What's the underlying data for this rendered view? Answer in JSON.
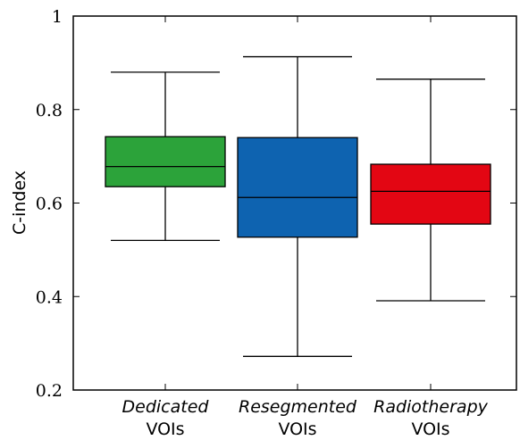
{
  "chart_data": {
    "type": "box",
    "ylabel": "C-index",
    "ylim": [
      0.2,
      1.0
    ],
    "yticks": [
      {
        "value": 0.2,
        "label": "0.2"
      },
      {
        "value": 0.4,
        "label": "0.4"
      },
      {
        "value": 0.6,
        "label": "0.6"
      },
      {
        "value": 0.8,
        "label": "0.8"
      },
      {
        "value": 1.0,
        "label": "1"
      }
    ],
    "grid": false,
    "series": [
      {
        "label_line1": "Dedicated",
        "label_line2": "VOIs",
        "color": "#2ca33a",
        "min": 0.52,
        "q1": 0.635,
        "median": 0.678,
        "q3": 0.742,
        "max": 0.88
      },
      {
        "label_line1": "Resegmented",
        "label_line2": "VOIs",
        "color": "#0e63b0",
        "min": 0.272,
        "q1": 0.527,
        "median": 0.612,
        "q3": 0.74,
        "max": 0.913
      },
      {
        "label_line1": "Radiotherapy",
        "label_line2": "VOIs",
        "color": "#e30613",
        "min": 0.391,
        "q1": 0.555,
        "median": 0.625,
        "q3": 0.683,
        "max": 0.865
      }
    ]
  }
}
